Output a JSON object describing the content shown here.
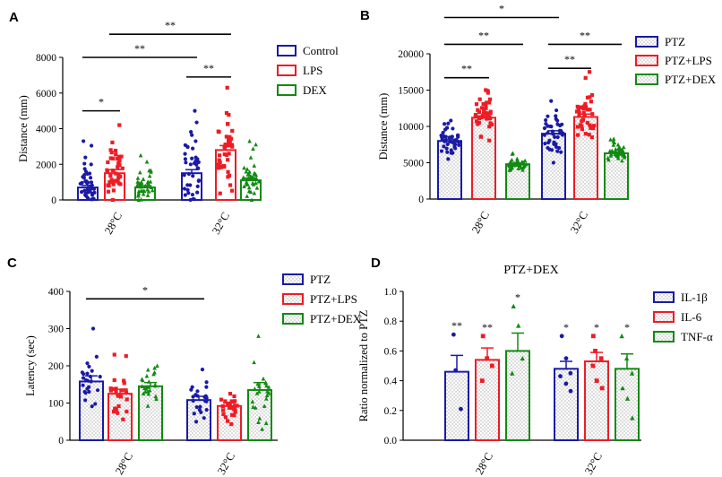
{
  "colors": {
    "blue": "#1a1aa6",
    "red": "#ee1c25",
    "green": "#128a12",
    "black": "#000000"
  },
  "chart_data": [
    {
      "panel": "A",
      "type": "bar",
      "title": "",
      "ylabel": "Distance (mm)",
      "ylim": [
        0,
        8000
      ],
      "yticks": [
        0,
        2000,
        4000,
        6000,
        8000
      ],
      "categories": [
        "28°C",
        "32°C"
      ],
      "series": [
        {
          "name": "Control",
          "color": "blue",
          "pattern": "none",
          "values": [
            700,
            1500
          ],
          "errors": [
            120,
            200
          ],
          "spread": [
            [
              0,
              3300
            ],
            [
              0,
              5000
            ]
          ],
          "n": 40,
          "marker": "circle"
        },
        {
          "name": "LPS",
          "color": "red",
          "pattern": "none",
          "values": [
            1500,
            2800
          ],
          "errors": [
            200,
            250
          ],
          "spread": [
            [
              0,
              4200
            ],
            [
              0,
              6300
            ]
          ],
          "n": 40,
          "marker": "square"
        },
        {
          "name": "DEX",
          "color": "green",
          "pattern": "none",
          "values": [
            700,
            1100
          ],
          "errors": [
            100,
            130
          ],
          "spread": [
            [
              0,
              2500
            ],
            [
              0,
              3300
            ]
          ],
          "n": 40,
          "marker": "triangle"
        }
      ],
      "significance": [
        {
          "from": [
            0,
            0
          ],
          "to": [
            0,
            1
          ],
          "label": "*",
          "level": 5000
        },
        {
          "from": [
            1,
            0
          ],
          "to": [
            1,
            1
          ],
          "label": "**",
          "level": 6900
        },
        {
          "from": [
            0,
            0
          ],
          "to": [
            1,
            0
          ],
          "label": "**",
          "level": 8000
        },
        {
          "from": [
            0,
            1
          ],
          "to": [
            1,
            1
          ],
          "label": "**",
          "level": 9300
        }
      ]
    },
    {
      "panel": "B",
      "type": "bar",
      "title": "",
      "ylabel": "Distance (mm)",
      "ylim": [
        0,
        20000
      ],
      "yticks": [
        0,
        5000,
        10000,
        15000,
        20000
      ],
      "categories": [
        "28°C",
        "32°C"
      ],
      "series": [
        {
          "name": "PTZ",
          "color": "blue",
          "pattern": "dots",
          "values": [
            8000,
            9000
          ],
          "errors": [
            250,
            400
          ],
          "spread": [
            [
              5500,
              10800
            ],
            [
              5000,
              13500
            ]
          ],
          "n": 40,
          "marker": "circle"
        },
        {
          "name": "PTZ+LPS",
          "color": "red",
          "pattern": "dots",
          "values": [
            11200,
            11300
          ],
          "errors": [
            250,
            400
          ],
          "spread": [
            [
              8000,
              15000
            ],
            [
              7000,
              17500
            ]
          ],
          "n": 40,
          "marker": "square"
        },
        {
          "name": "PTZ+DEX",
          "color": "green",
          "pattern": "dots",
          "values": [
            4800,
            6300
          ],
          "errors": [
            150,
            150
          ],
          "spread": [
            [
              3500,
              6300
            ],
            [
              5200,
              8300
            ]
          ],
          "n": 40,
          "marker": "triangle"
        }
      ],
      "significance": [
        {
          "from": [
            0,
            0
          ],
          "to": [
            0,
            1
          ],
          "label": "**",
          "level": 16700
        },
        {
          "from": [
            1,
            0
          ],
          "to": [
            1,
            1
          ],
          "label": "**",
          "level": 18000
        },
        {
          "from": [
            0,
            0
          ],
          "to": [
            0,
            2
          ],
          "label": "**",
          "level": 21300
        },
        {
          "from": [
            1,
            0
          ],
          "to": [
            1,
            2
          ],
          "label": "**",
          "level": 21300
        },
        {
          "from": [
            0,
            0
          ],
          "to": [
            1,
            0
          ],
          "label": "*",
          "level": 25000
        }
      ]
    },
    {
      "panel": "C",
      "type": "bar",
      "title": "",
      "ylabel": "Latency (sec)",
      "ylim": [
        0,
        400
      ],
      "yticks": [
        0,
        100,
        200,
        300,
        400
      ],
      "categories": [
        "28°C",
        "32°C"
      ],
      "series": [
        {
          "name": "PTZ",
          "color": "blue",
          "pattern": "dots",
          "values": [
            158,
            108
          ],
          "errors": [
            15,
            10
          ],
          "spread": [
            [
              80,
              300
            ],
            [
              20,
              190
            ]
          ],
          "n": 24,
          "marker": "circle"
        },
        {
          "name": "PTZ+LPS",
          "color": "red",
          "pattern": "dots",
          "values": [
            125,
            92
          ],
          "errors": [
            12,
            8
          ],
          "spread": [
            [
              20,
              230
            ],
            [
              20,
              125
            ]
          ],
          "n": 24,
          "marker": "square"
        },
        {
          "name": "PTZ+DEX",
          "color": "green",
          "pattern": "dots",
          "values": [
            145,
            135
          ],
          "errors": [
            10,
            20
          ],
          "spread": [
            [
              60,
              200
            ],
            [
              30,
              280
            ]
          ],
          "n": 24,
          "marker": "triangle"
        }
      ],
      "significance": [
        {
          "from": [
            0,
            0
          ],
          "to": [
            1,
            0
          ],
          "label": "*",
          "level": 380
        }
      ]
    },
    {
      "panel": "D",
      "type": "bar",
      "title": "PTZ+DEX",
      "ylabel": "Ratio normalized to PTZ",
      "ylim": [
        0,
        1.0
      ],
      "yticks": [
        0.0,
        0.2,
        0.4,
        0.6,
        0.8,
        1.0
      ],
      "categories": [
        "28°C",
        "32°C"
      ],
      "series": [
        {
          "name": "IL-1β",
          "color": "blue",
          "pattern": "dots",
          "values": [
            0.46,
            0.48
          ],
          "errors": [
            0.11,
            0.05
          ],
          "points": [
            [
              0.71,
              0.47,
              0.21
            ],
            [
              0.7,
              0.55,
              0.45,
              0.43,
              0.38,
              0.33
            ]
          ],
          "marker": "circle",
          "stars": [
            "**",
            "*"
          ]
        },
        {
          "name": "IL-6",
          "color": "red",
          "pattern": "dots",
          "values": [
            0.54,
            0.53
          ],
          "errors": [
            0.08,
            0.06
          ],
          "points": [
            [
              0.7,
              0.55,
              0.5,
              0.4
            ],
            [
              0.7,
              0.6,
              0.55,
              0.5,
              0.4,
              0.35
            ]
          ],
          "marker": "square",
          "stars": [
            "**",
            "*"
          ]
        },
        {
          "name": "TNF-α",
          "color": "green",
          "pattern": "dots",
          "values": [
            0.6,
            0.48
          ],
          "errors": [
            0.12,
            0.1
          ],
          "points": [
            [
              0.9,
              0.77,
              0.55,
              0.45
            ],
            [
              0.7,
              0.55,
              0.45,
              0.35,
              0.28,
              0.15
            ]
          ],
          "marker": "triangle",
          "stars": [
            "*",
            "*"
          ]
        }
      ],
      "significance": []
    }
  ]
}
